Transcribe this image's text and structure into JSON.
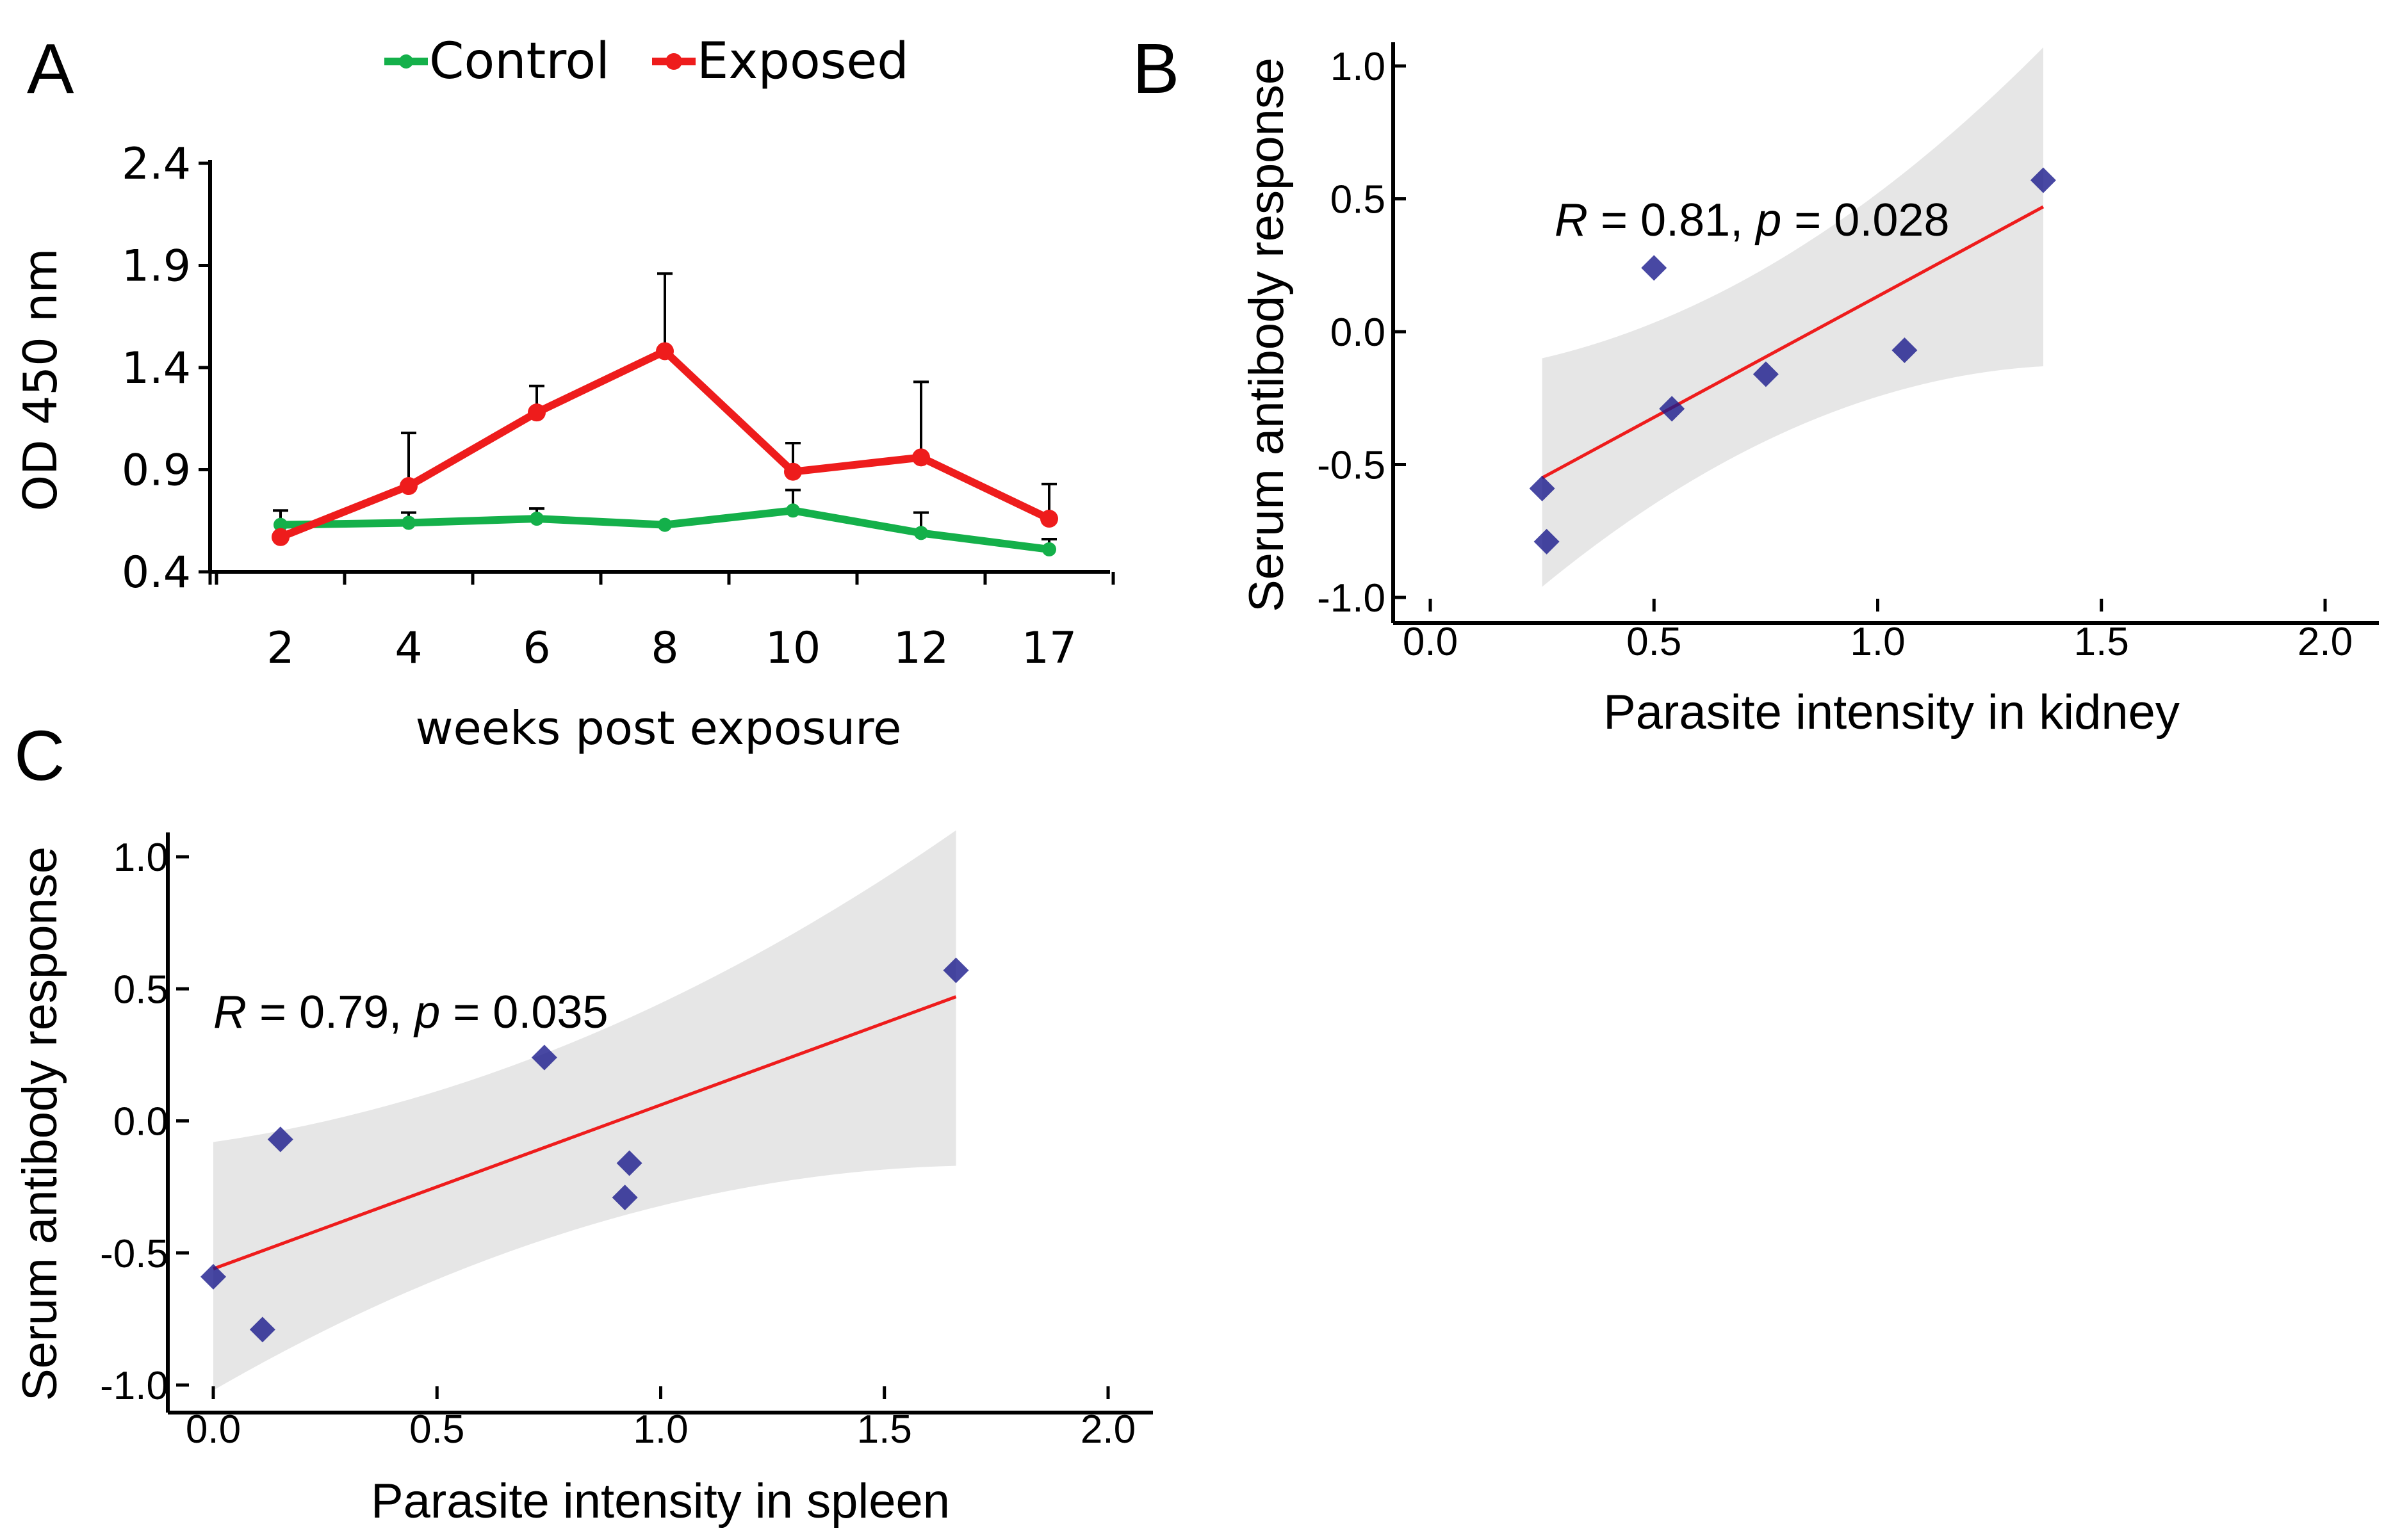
{
  "chart_data": [
    {
      "panel": "A",
      "type": "line",
      "categories": [
        "2",
        "4",
        "6",
        "8",
        "10",
        "12",
        "17"
      ],
      "series": [
        {
          "name": "Control",
          "color": "#14b04a",
          "values": [
            0.63,
            0.64,
            0.66,
            0.63,
            0.7,
            0.59,
            0.51
          ],
          "errors": [
            0.07,
            0.05,
            0.05,
            0.0,
            0.1,
            0.1,
            0.05
          ]
        },
        {
          "name": "Exposed",
          "color": "#ee1c1c",
          "values": [
            0.57,
            0.82,
            1.18,
            1.48,
            0.89,
            0.96,
            0.66
          ],
          "errors": [
            0.0,
            0.26,
            0.13,
            0.38,
            0.14,
            0.37,
            0.17
          ]
        }
      ],
      "xlabel": "weeks post exposure",
      "ylabel": "OD 450 nm",
      "yticks": [
        "0.4",
        "0.9",
        "1.4",
        "1.9",
        "2.4"
      ],
      "ylim": [
        0.4,
        2.4
      ],
      "legend_position": "top"
    },
    {
      "panel": "B",
      "type": "scatter",
      "points": [
        {
          "x": 0.25,
          "y": -0.59
        },
        {
          "x": 0.26,
          "y": -0.79
        },
        {
          "x": 0.5,
          "y": 0.24
        },
        {
          "x": 0.54,
          "y": -0.29
        },
        {
          "x": 0.75,
          "y": -0.16
        },
        {
          "x": 1.06,
          "y": -0.07
        },
        {
          "x": 1.37,
          "y": 0.57
        }
      ],
      "fit": {
        "x": [
          0.25,
          1.37
        ],
        "y": [
          -0.55,
          0.47
        ]
      },
      "band": {
        "x": [
          0.25,
          1.37
        ],
        "upper": [
          -0.1,
          1.07
        ],
        "lower": [
          -0.96,
          -0.13
        ]
      },
      "annotation": {
        "r_label": "R",
        "r_text": " = 0.81, ",
        "p_label": "p",
        "p_text": " = 0.028"
      },
      "xlabel": "Parasite intensity in kidney",
      "ylabel": "Serum antibody response",
      "xticks": [
        "0.0",
        "0.5",
        "1.0",
        "1.5",
        "2.0"
      ],
      "yticks": [
        "-1.0",
        "-0.5",
        "0.0",
        "0.5",
        "1.0"
      ],
      "xlim": [
        0.0,
        2.0
      ],
      "ylim": [
        -1.0,
        1.0
      ]
    },
    {
      "panel": "C",
      "type": "scatter",
      "points": [
        {
          "x": 0.0,
          "y": -0.59
        },
        {
          "x": 0.11,
          "y": -0.79
        },
        {
          "x": 0.15,
          "y": -0.07
        },
        {
          "x": 0.74,
          "y": 0.24
        },
        {
          "x": 0.92,
          "y": -0.29
        },
        {
          "x": 0.93,
          "y": -0.16
        },
        {
          "x": 1.66,
          "y": 0.57
        }
      ],
      "fit": {
        "x": [
          0.0,
          1.66
        ],
        "y": [
          -0.56,
          0.47
        ]
      },
      "band": {
        "x": [
          0.0,
          1.66
        ],
        "upper": [
          -0.08,
          1.1
        ],
        "lower": [
          -1.02,
          -0.17
        ]
      },
      "annotation": {
        "r_label": "R",
        "r_text": " = 0.79, ",
        "p_label": "p",
        "p_text": " = 0.035"
      },
      "xlabel": "Parasite intensity in spleen",
      "ylabel": "Serum antibody response",
      "xticks": [
        "0.0",
        "0.5",
        "1.0",
        "1.5",
        "2.0"
      ],
      "yticks": [
        "-1.0",
        "-0.5",
        "0.0",
        "0.5",
        "1.0"
      ],
      "xlim": [
        0.0,
        2.0
      ],
      "ylim": [
        -1.0,
        1.0
      ]
    }
  ],
  "colors": {
    "point": "#1a1a8c",
    "fit_line": "#ee1c1c",
    "band": "#e6e6e6"
  }
}
